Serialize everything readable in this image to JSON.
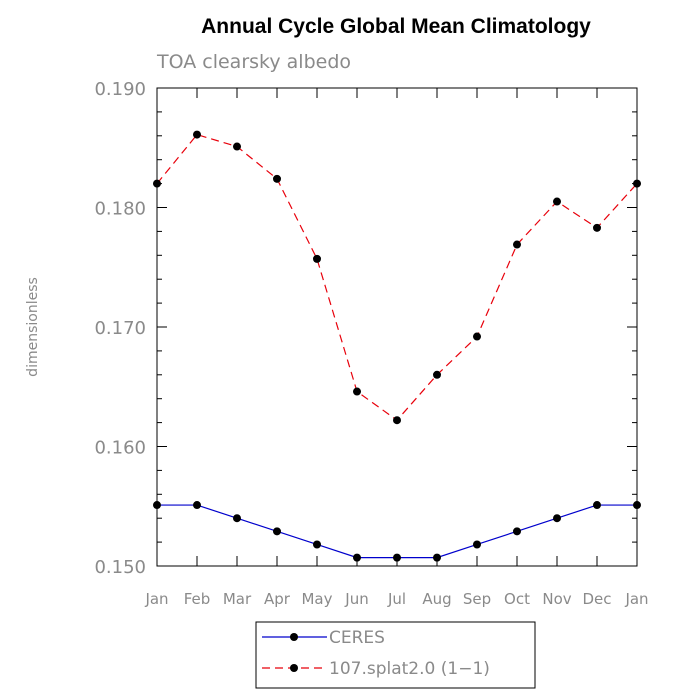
{
  "chart_data": {
    "type": "line",
    "title": "Annual Cycle Global Mean Climatology",
    "subtitle": "TOA clearsky albedo",
    "xlabel": "",
    "ylabel": "dimensionless",
    "categories": [
      "Jan",
      "Feb",
      "Mar",
      "Apr",
      "May",
      "Jun",
      "Jul",
      "Aug",
      "Sep",
      "Oct",
      "Nov",
      "Dec",
      "Jan"
    ],
    "ylim": [
      0.15,
      0.19
    ],
    "yticks": [
      "0.150",
      "0.160",
      "0.170",
      "0.180",
      "0.190"
    ],
    "yminor_step": 0.002,
    "grid": false,
    "legend_position": "bottom-center",
    "series": [
      {
        "name": "CERES",
        "color": "#0000cc",
        "dash": "solid",
        "marker": "filled-circle",
        "values": [
          0.1551,
          0.1551,
          0.154,
          0.1529,
          0.1518,
          0.1507,
          0.1507,
          0.1507,
          0.1518,
          0.1529,
          0.154,
          0.1551,
          0.1551
        ]
      },
      {
        "name": "107.splat2.0 (1−1)",
        "color": "#e8000b",
        "dash": "dashed",
        "marker": "filled-circle",
        "values": [
          0.182,
          0.1861,
          0.1851,
          0.1824,
          0.1757,
          0.1646,
          0.1622,
          0.166,
          0.1692,
          0.1769,
          0.1805,
          0.1783,
          0.182
        ]
      }
    ]
  }
}
